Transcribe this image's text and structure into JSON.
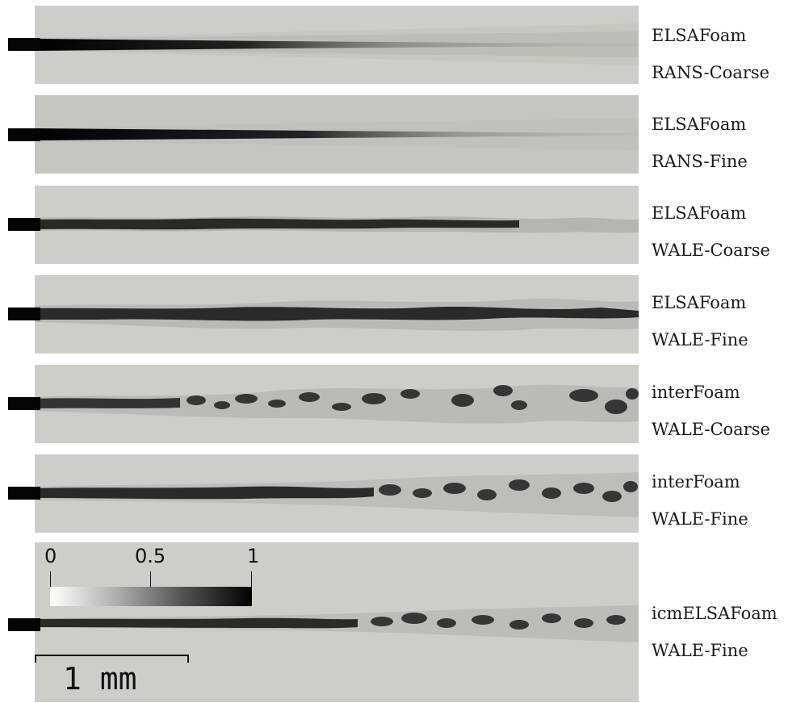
{
  "panels": [
    {
      "solver": "ELSAFoam",
      "model": "RANS-Coarse"
    },
    {
      "solver": "ELSAFoam",
      "model": "RANS-Fine"
    },
    {
      "solver": "ELSAFoam",
      "model": "WALE-Coarse"
    },
    {
      "solver": "ELSAFoam",
      "model": "WALE-Fine"
    },
    {
      "solver": "interFoam",
      "model": "WALE-Coarse"
    },
    {
      "solver": "interFoam",
      "model": "WALE-Fine"
    },
    {
      "solver": "icmELSAFoam",
      "model": "WALE-Fine"
    }
  ],
  "colorbar": {
    "min_label": "0",
    "mid_label": "0.5",
    "max_label": "1",
    "colors": [
      "#ffffff",
      "#000000"
    ]
  },
  "scale": {
    "label": "1 mm"
  }
}
